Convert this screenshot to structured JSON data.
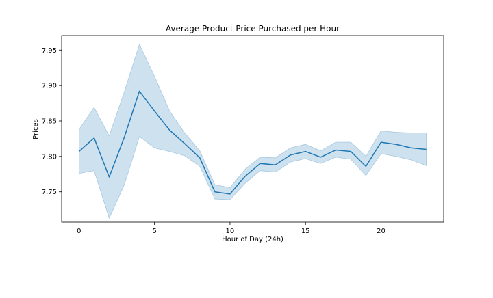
{
  "chart_data": {
    "type": "line",
    "title": "Average Product Price Purchased per Hour",
    "xlabel": "Hour of Day (24h)",
    "ylabel": "Prices",
    "xlim": [
      -1.15,
      24.15
    ],
    "ylim": [
      7.7073,
      7.9705
    ],
    "x_ticks": [
      0,
      5,
      10,
      15,
      20
    ],
    "y_ticks": [
      7.75,
      7.8,
      7.85,
      7.9,
      7.95
    ],
    "grid": false,
    "legend": "none",
    "series": [
      {
        "color": "#1f77b4",
        "band_color": "#a6c8e0",
        "x": [
          0,
          1,
          2,
          3,
          4,
          5,
          6,
          7,
          8,
          9,
          10,
          11,
          12,
          13,
          14,
          15,
          16,
          17,
          18,
          19,
          20,
          21,
          22,
          23
        ],
        "values": [
          7.807,
          7.826,
          7.771,
          7.827,
          7.892,
          7.864,
          7.837,
          7.818,
          7.798,
          7.75,
          7.747,
          7.772,
          7.79,
          7.788,
          7.802,
          7.807,
          7.799,
          7.809,
          7.807,
          7.786,
          7.82,
          7.817,
          7.812,
          7.81
        ],
        "ci_lower": [
          7.776,
          7.78,
          7.713,
          7.76,
          7.828,
          7.812,
          7.807,
          7.801,
          7.786,
          7.74,
          7.739,
          7.762,
          7.78,
          7.778,
          7.792,
          7.797,
          7.79,
          7.799,
          7.796,
          7.773,
          7.804,
          7.8,
          7.795,
          7.787
        ],
        "ci_upper": [
          7.838,
          7.869,
          7.829,
          7.891,
          7.958,
          7.913,
          7.864,
          7.833,
          7.808,
          7.76,
          7.756,
          7.782,
          7.799,
          7.798,
          7.812,
          7.817,
          7.808,
          7.82,
          7.82,
          7.8,
          7.836,
          7.834,
          7.833,
          7.833
        ]
      }
    ]
  }
}
